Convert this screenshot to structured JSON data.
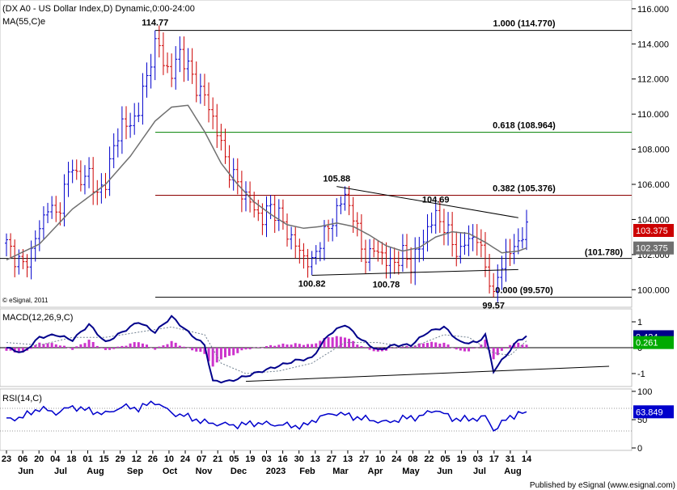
{
  "chart_data": {
    "type": "candlestick",
    "title": "(DX A0 - US Dollar Index,D) Dynamic,0:00-24:00",
    "indicator_label": "MA(55,C)e",
    "watermark": "© eSignal, 2011",
    "publisher": "Published by eSignal (www.esignal.com)",
    "price_axis": {
      "min": 99,
      "max": 116.5,
      "ticks": [
        100,
        102,
        104,
        106,
        108,
        110,
        112,
        114,
        116
      ],
      "tick_labels": [
        "100.000",
        "102.000",
        "104.000",
        "106.000",
        "108.000",
        "110.000",
        "112.000",
        "114.000",
        "116.000"
      ]
    },
    "date_ticks": [
      "23",
      "06",
      "20",
      "04",
      "18",
      "01",
      "15",
      "29",
      "12",
      "26",
      "10",
      "24",
      "07",
      "21",
      "05",
      "19",
      "03",
      "16",
      "30",
      "13",
      "27",
      "13",
      "27",
      "10",
      "24",
      "08",
      "22",
      "05",
      "19",
      "03",
      "17",
      "31",
      "14"
    ],
    "month_labels": [
      "Jun",
      "Jul",
      "Aug",
      "Sep",
      "Oct",
      "Nov",
      "Dec",
      "2023",
      "Feb",
      "Mar",
      "Apr",
      "May",
      "Jun",
      "Jul",
      "Aug"
    ],
    "close_anchor_points": [
      [
        0,
        102.6
      ],
      [
        2,
        101.9
      ],
      [
        4,
        101.3
      ],
      [
        6,
        102.2
      ],
      [
        8,
        103.5
      ],
      [
        10,
        104.8
      ],
      [
        12,
        104.2
      ],
      [
        14,
        105.7
      ],
      [
        16,
        107.2
      ],
      [
        18,
        106.0
      ],
      [
        20,
        106.8
      ],
      [
        22,
        105.2
      ],
      [
        24,
        106.3
      ],
      [
        26,
        108.0
      ],
      [
        28,
        109.6
      ],
      [
        30,
        109.2
      ],
      [
        32,
        110.4
      ],
      [
        34,
        112.0
      ],
      [
        36,
        114.5
      ],
      [
        38,
        113.0
      ],
      [
        40,
        112.2
      ],
      [
        42,
        113.6
      ],
      [
        44,
        112.6
      ],
      [
        46,
        111.6
      ],
      [
        48,
        111.0
      ],
      [
        50,
        109.8
      ],
      [
        52,
        108.2
      ],
      [
        54,
        106.8
      ],
      [
        56,
        106.0
      ],
      [
        58,
        105.3
      ],
      [
        60,
        104.6
      ],
      [
        62,
        104.0
      ],
      [
        64,
        104.8
      ],
      [
        66,
        104.2
      ],
      [
        68,
        103.3
      ],
      [
        70,
        102.5
      ],
      [
        72,
        101.9
      ],
      [
        74,
        101.4
      ],
      [
        76,
        102.9
      ],
      [
        78,
        103.4
      ],
      [
        80,
        104.6
      ],
      [
        82,
        105.3
      ],
      [
        84,
        104.3
      ],
      [
        86,
        102.3
      ],
      [
        88,
        101.9
      ],
      [
        90,
        102.4
      ],
      [
        92,
        101.5
      ],
      [
        94,
        101.6
      ],
      [
        96,
        102.0
      ],
      [
        98,
        101.5
      ],
      [
        100,
        102.3
      ],
      [
        102,
        103.5
      ],
      [
        104,
        104.2
      ],
      [
        106,
        103.7
      ],
      [
        108,
        102.6
      ],
      [
        110,
        102.1
      ],
      [
        112,
        103.0
      ],
      [
        114,
        102.9
      ],
      [
        116,
        101.4
      ],
      [
        118,
        99.9
      ],
      [
        120,
        101.6
      ],
      [
        122,
        102.1
      ],
      [
        124,
        102.8
      ],
      [
        126,
        103.4
      ]
    ],
    "highs_lows": {
      "high": 114.77,
      "low": 99.57
    },
    "ma55": {
      "name": "MA(55,C)e",
      "last_value": 102.375,
      "anchors": [
        [
          0,
          101.7
        ],
        [
          8,
          102.6
        ],
        [
          16,
          104.6
        ],
        [
          24,
          106.0
        ],
        [
          30,
          107.6
        ],
        [
          36,
          109.6
        ],
        [
          40,
          110.4
        ],
        [
          44,
          110.5
        ],
        [
          48,
          109.0
        ],
        [
          52,
          107.2
        ],
        [
          56,
          106.0
        ],
        [
          60,
          105.0
        ],
        [
          64,
          104.3
        ],
        [
          68,
          103.7
        ],
        [
          72,
          103.5
        ],
        [
          76,
          103.6
        ],
        [
          80,
          103.8
        ],
        [
          84,
          103.6
        ],
        [
          88,
          103.1
        ],
        [
          92,
          102.5
        ],
        [
          96,
          102.2
        ],
        [
          100,
          102.4
        ],
        [
          104,
          103.0
        ],
        [
          108,
          103.3
        ],
        [
          112,
          103.2
        ],
        [
          116,
          102.7
        ],
        [
          120,
          102.1
        ],
        [
          124,
          102.2
        ],
        [
          126,
          102.375
        ]
      ]
    },
    "last_price": "103.375",
    "ma_last_label": "102.375",
    "fibonacci": [
      {
        "ratio": "1.000",
        "price": 114.77,
        "label": "1.000 (114.770)",
        "color": "#000000"
      },
      {
        "ratio": "0.618",
        "price": 108.964,
        "label": "0.618 (108.964)",
        "color": "#008000"
      },
      {
        "ratio": "0.382",
        "price": 105.376,
        "label": "0.382 (105.376)",
        "color": "#8b0000"
      },
      {
        "ratio": "0.000",
        "price": 99.57,
        "label": "0.000 (99.570)",
        "color": "#000000"
      }
    ],
    "support_line": {
      "price": 101.78,
      "label": "(101.780)"
    },
    "annotations": [
      {
        "text": "114.77",
        "bar": 36,
        "price": 114.77
      },
      {
        "text": "105.88",
        "bar": 80,
        "price": 105.88
      },
      {
        "text": "104.69",
        "bar": 104,
        "price": 104.69
      },
      {
        "text": "100.82",
        "bar": 74,
        "price": 100.82
      },
      {
        "text": "100.78",
        "bar": 92,
        "price": 100.78
      },
      {
        "text": "99.57",
        "bar": 118,
        "price": 99.57
      }
    ],
    "macd": {
      "title": "MACD(12,26,9,C)",
      "axis": {
        "min": -1.5,
        "max": 1.5,
        "ticks": [
          1,
          0,
          -1
        ],
        "tick_labels": [
          "1",
          "0",
          "-1"
        ]
      },
      "last_value": "0.424",
      "signal_value": "0.261",
      "macd_anchors": [
        [
          0,
          0.0
        ],
        [
          4,
          -0.2
        ],
        [
          8,
          0.4
        ],
        [
          12,
          0.5
        ],
        [
          16,
          0.3
        ],
        [
          20,
          0.9
        ],
        [
          24,
          0.2
        ],
        [
          28,
          0.6
        ],
        [
          32,
          1.0
        ],
        [
          36,
          0.6
        ],
        [
          40,
          1.2
        ],
        [
          44,
          0.6
        ],
        [
          48,
          0.1
        ],
        [
          50,
          -1.3
        ],
        [
          54,
          -1.3
        ],
        [
          58,
          -1.1
        ],
        [
          62,
          -0.9
        ],
        [
          66,
          -0.7
        ],
        [
          70,
          -0.5
        ],
        [
          74,
          -0.4
        ],
        [
          78,
          0.5
        ],
        [
          82,
          0.9
        ],
        [
          86,
          0.3
        ],
        [
          90,
          -0.1
        ],
        [
          94,
          0.1
        ],
        [
          98,
          0.1
        ],
        [
          102,
          0.6
        ],
        [
          106,
          0.8
        ],
        [
          110,
          0.2
        ],
        [
          114,
          0.2
        ],
        [
          116,
          0.5
        ],
        [
          118,
          -0.9
        ],
        [
          120,
          -0.5
        ],
        [
          124,
          0.3
        ],
        [
          126,
          0.424
        ]
      ],
      "signal_anchors": [
        [
          0,
          0.2
        ],
        [
          8,
          0.1
        ],
        [
          16,
          0.4
        ],
        [
          24,
          0.4
        ],
        [
          32,
          0.6
        ],
        [
          40,
          0.8
        ],
        [
          48,
          0.5
        ],
        [
          52,
          -0.6
        ],
        [
          58,
          -1.0
        ],
        [
          66,
          -0.9
        ],
        [
          74,
          -0.6
        ],
        [
          82,
          0.2
        ],
        [
          90,
          0.2
        ],
        [
          98,
          0.0
        ],
        [
          106,
          0.5
        ],
        [
          112,
          0.4
        ],
        [
          118,
          -0.2
        ],
        [
          122,
          -0.3
        ],
        [
          126,
          0.261
        ]
      ],
      "trendline": {
        "from": [
          58,
          -1.3
        ],
        "to": [
          146,
          -0.72
        ]
      }
    },
    "rsi": {
      "title": "RSI(14,C)",
      "axis": {
        "min": 0,
        "max": 100,
        "ticks": [
          100,
          50,
          0
        ],
        "tick_labels": [
          "100",
          "50",
          "0"
        ]
      },
      "levels": [
        70,
        30
      ],
      "last_value": "63.849",
      "anchors": [
        [
          0,
          50
        ],
        [
          4,
          55
        ],
        [
          8,
          70
        ],
        [
          12,
          62
        ],
        [
          16,
          73
        ],
        [
          20,
          66
        ],
        [
          24,
          60
        ],
        [
          28,
          73
        ],
        [
          32,
          70
        ],
        [
          36,
          82
        ],
        [
          40,
          62
        ],
        [
          44,
          55
        ],
        [
          48,
          45
        ],
        [
          52,
          42
        ],
        [
          56,
          40
        ],
        [
          60,
          44
        ],
        [
          64,
          42
        ],
        [
          68,
          40
        ],
        [
          72,
          38
        ],
        [
          76,
          55
        ],
        [
          80,
          62
        ],
        [
          84,
          55
        ],
        [
          88,
          50
        ],
        [
          92,
          45
        ],
        [
          96,
          52
        ],
        [
          100,
          55
        ],
        [
          104,
          68
        ],
        [
          108,
          52
        ],
        [
          112,
          50
        ],
        [
          116,
          55
        ],
        [
          118,
          32
        ],
        [
          120,
          45
        ],
        [
          124,
          62
        ],
        [
          126,
          63.849
        ]
      ]
    }
  },
  "colors": {
    "up": "#0000cc",
    "down": "#cc0000",
    "ma": "#707070",
    "macd": "#00008b",
    "signal": "#708090",
    "hist": "#cc33cc",
    "rsi": "#0000cc",
    "last_price_bg": "#cc0000",
    "ma_bg": "#707070",
    "macd_bg": "#00008b",
    "signal_bg": "#00aa00",
    "rsi_bg": "#0000cc"
  }
}
